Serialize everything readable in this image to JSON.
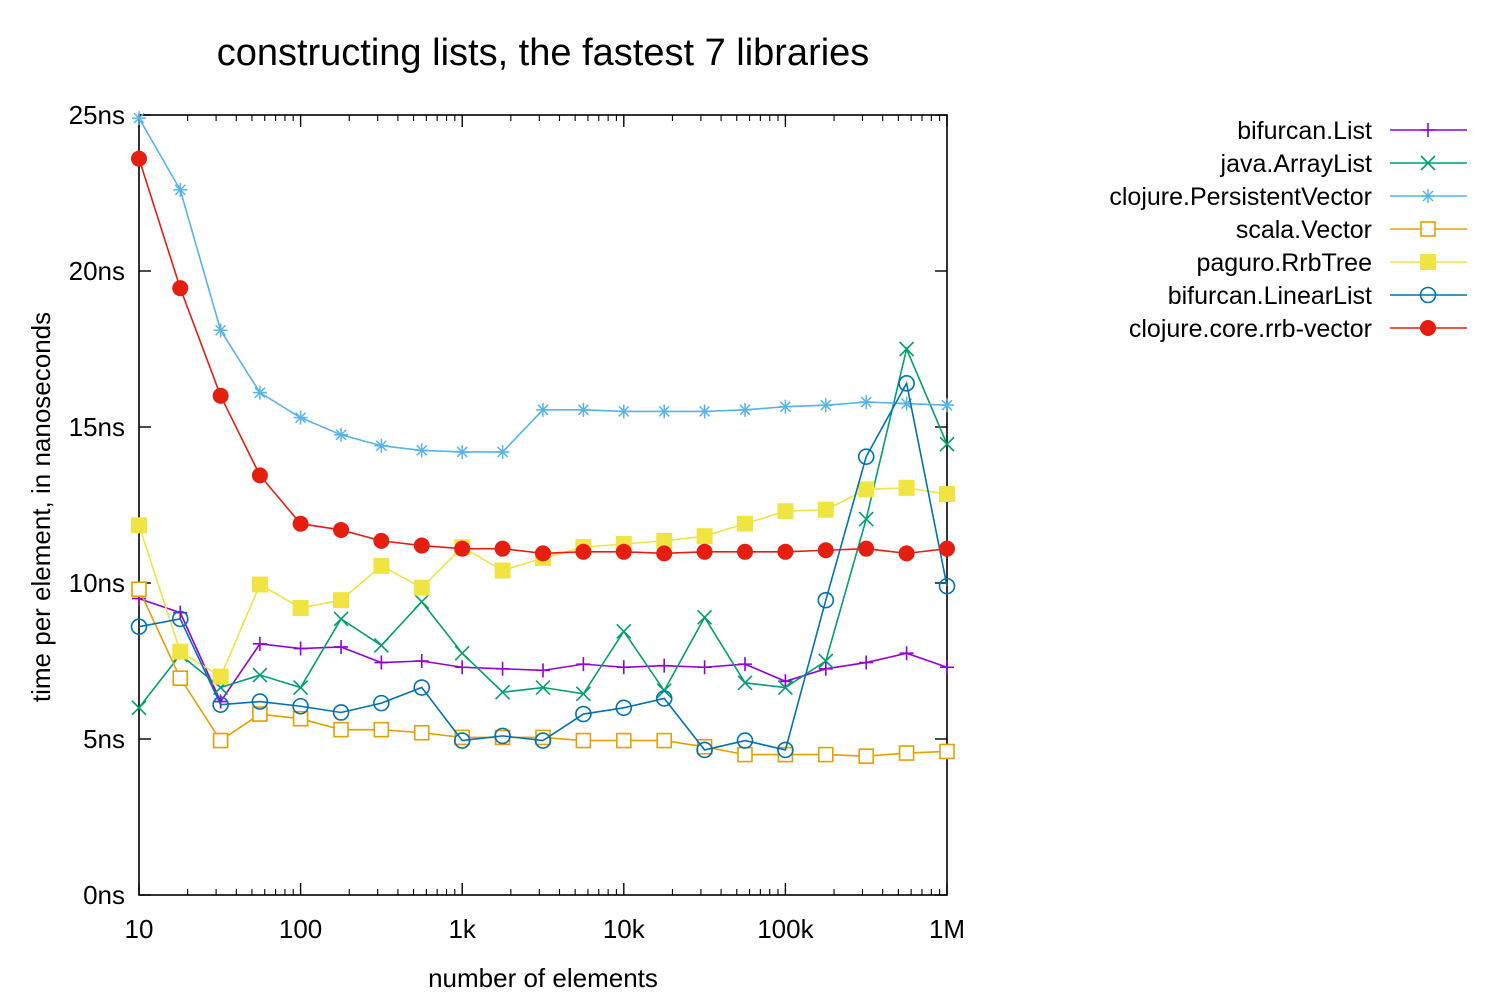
{
  "chart_data": {
    "type": "line",
    "title": "constructing lists, the fastest 7 libraries",
    "xlabel": "number of elements",
    "ylabel": "time per element, in nanoseconds",
    "x_scale": "log",
    "xlim": [
      10,
      1000000
    ],
    "ylim": [
      0,
      25
    ],
    "x_ticks": [
      {
        "value": 10,
        "label": "10"
      },
      {
        "value": 100,
        "label": "100"
      },
      {
        "value": 1000,
        "label": "1k"
      },
      {
        "value": 10000,
        "label": "10k"
      },
      {
        "value": 100000,
        "label": "100k"
      },
      {
        "value": 1000000,
        "label": "1M"
      }
    ],
    "y_ticks": [
      {
        "value": 0,
        "label": "0ns"
      },
      {
        "value": 5,
        "label": "5ns"
      },
      {
        "value": 10,
        "label": "10ns"
      },
      {
        "value": 15,
        "label": "15ns"
      },
      {
        "value": 20,
        "label": "20ns"
      },
      {
        "value": 25,
        "label": "25ns"
      }
    ],
    "grid": false,
    "legend_position": "right",
    "x": [
      10,
      18,
      32,
      56,
      100,
      178,
      316,
      562,
      1000,
      1778,
      3162,
      5623,
      10000,
      17783,
      31623,
      56234,
      100000,
      177828,
      316228,
      562341,
      1000000
    ],
    "series": [
      {
        "name": "bifurcan.List",
        "color": "#9400d3",
        "marker": "plus",
        "values": [
          9.5,
          9.05,
          6.2,
          8.05,
          7.9,
          7.95,
          7.45,
          7.5,
          7.3,
          7.25,
          7.2,
          7.4,
          7.3,
          7.35,
          7.3,
          7.4,
          6.85,
          7.25,
          7.45,
          7.75,
          7.3
        ]
      },
      {
        "name": "java.ArrayList",
        "color": "#009e73",
        "marker": "cross",
        "values": [
          6.0,
          7.7,
          6.65,
          7.05,
          6.65,
          8.85,
          8.0,
          9.4,
          7.75,
          6.5,
          6.65,
          6.45,
          8.45,
          6.55,
          8.9,
          6.8,
          6.65,
          7.5,
          12.05,
          17.5,
          14.45
        ]
      },
      {
        "name": "clojure.PersistentVector",
        "color": "#56b4e9",
        "marker": "star",
        "values": [
          24.9,
          22.6,
          18.1,
          16.1,
          15.3,
          14.75,
          14.4,
          14.25,
          14.2,
          14.2,
          15.55,
          15.55,
          15.5,
          15.5,
          15.5,
          15.55,
          15.65,
          15.7,
          15.8,
          15.75,
          15.7
        ]
      },
      {
        "name": "scala.Vector",
        "color": "#e69f00",
        "marker": "open-square",
        "values": [
          9.8,
          6.95,
          4.95,
          5.8,
          5.65,
          5.3,
          5.3,
          5.2,
          5.05,
          5.05,
          5.05,
          4.95,
          4.95,
          4.95,
          4.75,
          4.5,
          4.5,
          4.5,
          4.45,
          4.55,
          4.6
        ]
      },
      {
        "name": "paguro.RrbTree",
        "color": "#f0e442",
        "marker": "filled-square",
        "values": [
          11.85,
          7.8,
          7.0,
          9.95,
          9.2,
          9.45,
          10.55,
          9.85,
          11.15,
          10.4,
          10.8,
          11.15,
          11.25,
          11.35,
          11.5,
          11.9,
          12.3,
          12.35,
          13.0,
          13.05,
          12.85
        ]
      },
      {
        "name": "bifurcan.LinearList",
        "color": "#0072b2",
        "marker": "open-circle",
        "values": [
          8.6,
          8.85,
          6.1,
          6.2,
          6.05,
          5.85,
          6.15,
          6.65,
          4.95,
          5.1,
          4.95,
          5.8,
          6.0,
          6.3,
          4.65,
          4.95,
          4.65,
          9.45,
          14.05,
          16.4,
          9.9
        ]
      },
      {
        "name": "clojure.core.rrb-vector",
        "color": "#e51e10",
        "marker": "filled-circle",
        "values": [
          23.6,
          19.45,
          16.0,
          13.45,
          11.9,
          11.7,
          11.35,
          11.2,
          11.1,
          11.1,
          10.95,
          11.0,
          11.0,
          10.95,
          11.0,
          11.0,
          11.0,
          11.05,
          11.1,
          10.95,
          11.1
        ]
      }
    ]
  }
}
